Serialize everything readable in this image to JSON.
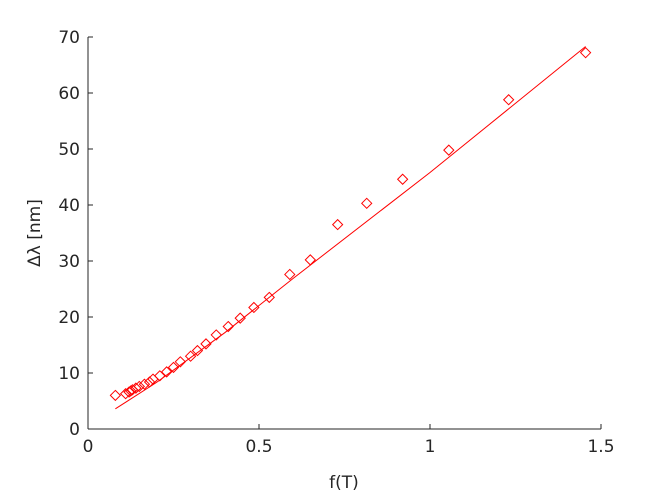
{
  "chart_data": {
    "type": "scatter",
    "x_label": "f(T)",
    "y_label": "Δλ [nm]",
    "xlim": [
      0,
      1.5
    ],
    "ylim": [
      0,
      70
    ],
    "xticks": [
      0,
      0.5,
      1,
      1.5
    ],
    "yticks": [
      0,
      10,
      20,
      30,
      40,
      50,
      60,
      70
    ],
    "grid": false,
    "series": [
      {
        "color": "#ff0000",
        "marker": "diamond",
        "x": [
          0.08,
          0.11,
          0.12,
          0.125,
          0.13,
          0.14,
          0.15,
          0.165,
          0.18,
          0.19,
          0.21,
          0.23,
          0.25,
          0.27,
          0.3,
          0.32,
          0.345,
          0.375,
          0.41,
          0.445,
          0.485,
          0.53,
          0.59,
          0.65,
          0.73,
          0.815,
          0.92,
          1.055,
          1.23,
          1.455
        ],
        "values": [
          6.0,
          6.3,
          6.6,
          6.8,
          7.0,
          7.3,
          7.6,
          8.0,
          8.4,
          8.9,
          9.5,
          10.2,
          11.0,
          12.0,
          13.0,
          14.0,
          15.2,
          16.8,
          18.3,
          19.8,
          21.7,
          23.5,
          27.6,
          30.2,
          36.5,
          40.3,
          44.6,
          49.8,
          58.8,
          67.2
        ]
      },
      {
        "color": "#ff0000",
        "style": "line",
        "x": [
          0.08,
          0.2,
          0.4,
          0.6,
          1.0,
          1.455
        ],
        "values": [
          3.6,
          8.3,
          17.2,
          26.9,
          45.8,
          68.3
        ]
      }
    ]
  }
}
